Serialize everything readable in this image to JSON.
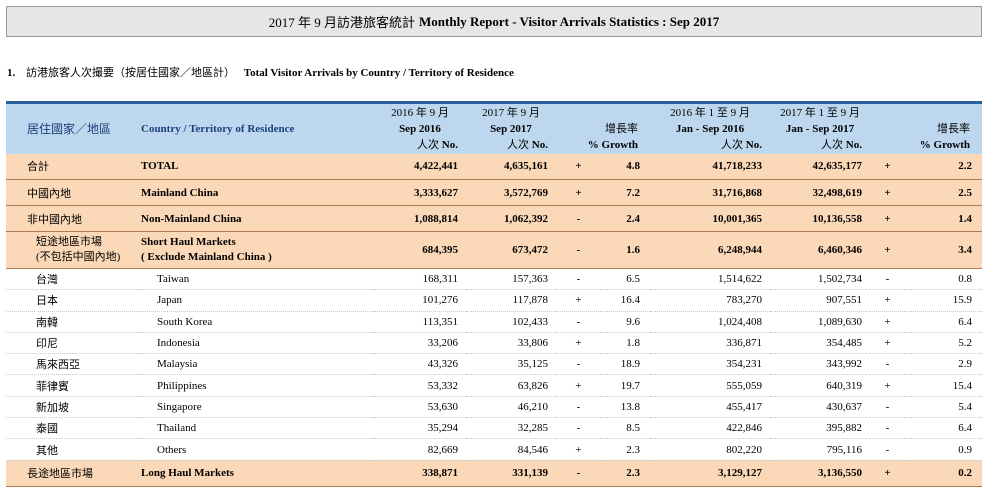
{
  "title": {
    "zh": "2017 年 9 月訪港旅客統計",
    "en": "Monthly Report - Visitor Arrivals Statistics : Sep 2017"
  },
  "section": {
    "number": "1.",
    "zh": "訪港旅客人次撮要（按居住國家／地區計）",
    "en": "Total Visitor Arrivals by Country / Territory of Residence"
  },
  "header": {
    "col_zh": "居住國家／地區",
    "col_en": "Country / Territory of Residence",
    "sep2016_zh": "2016 年 9 月",
    "sep2016_en": "Sep 2016",
    "sep2017_zh": "2017 年 9 月",
    "sep2017_en": "Sep 2017",
    "unit_zh": "人次",
    "unit_en": "No.",
    "growth_zh": "增長率",
    "growth_en": "% Growth",
    "ytd2016_zh": "2016 年 1 至 9 月",
    "ytd2016_en": "Jan - Sep 2016",
    "ytd2017_zh": "2017 年 1 至 9 月",
    "ytd2017_en": "Jan - Sep 2017"
  },
  "rows": [
    {
      "type": "summary",
      "zh": "合計",
      "en": "TOTAL",
      "sep16": "4,422,441",
      "sep17": "4,635,161",
      "s1": "+",
      "g1": "4.8",
      "ytd16": "41,718,233",
      "ytd17": "42,635,177",
      "s2": "+",
      "g2": "2.2"
    },
    {
      "type": "summary",
      "zh": "中國內地",
      "en": "Mainland China",
      "sep16": "3,333,627",
      "sep17": "3,572,769",
      "s1": "+",
      "g1": "7.2",
      "ytd16": "31,716,868",
      "ytd17": "32,498,619",
      "s2": "+",
      "g2": "2.5"
    },
    {
      "type": "summary",
      "zh": "非中國內地",
      "en": "Non-Mainland China",
      "sep16": "1,088,814",
      "sep17": "1,062,392",
      "s1": "-",
      "g1": "2.4",
      "ytd16": "10,001,365",
      "ytd17": "10,136,558",
      "s2": "+",
      "g2": "1.4"
    },
    {
      "type": "summary-tall",
      "zh": "短途地區市場",
      "zh2": "(不包括中國內地)",
      "en": "Short Haul Markets",
      "en2": "( Exclude Mainland China )",
      "sep16": "684,395",
      "sep17": "673,472",
      "s1": "-",
      "g1": "1.6",
      "ytd16": "6,248,944",
      "ytd17": "6,460,346",
      "s2": "+",
      "g2": "3.4"
    },
    {
      "type": "detail",
      "zh": "台灣",
      "en": "Taiwan",
      "sep16": "168,311",
      "sep17": "157,363",
      "s1": "-",
      "g1": "6.5",
      "ytd16": "1,514,622",
      "ytd17": "1,502,734",
      "s2": "-",
      "g2": "0.8"
    },
    {
      "type": "detail",
      "zh": "日本",
      "en": "Japan",
      "sep16": "101,276",
      "sep17": "117,878",
      "s1": "+",
      "g1": "16.4",
      "ytd16": "783,270",
      "ytd17": "907,551",
      "s2": "+",
      "g2": "15.9"
    },
    {
      "type": "detail",
      "zh": "南韓",
      "en": "South Korea",
      "sep16": "113,351",
      "sep17": "102,433",
      "s1": "-",
      "g1": "9.6",
      "ytd16": "1,024,408",
      "ytd17": "1,089,630",
      "s2": "+",
      "g2": "6.4"
    },
    {
      "type": "detail",
      "zh": "印尼",
      "en": "Indonesia",
      "sep16": "33,206",
      "sep17": "33,806",
      "s1": "+",
      "g1": "1.8",
      "ytd16": "336,871",
      "ytd17": "354,485",
      "s2": "+",
      "g2": "5.2"
    },
    {
      "type": "detail",
      "zh": "馬來西亞",
      "en": "Malaysia",
      "sep16": "43,326",
      "sep17": "35,125",
      "s1": "-",
      "g1": "18.9",
      "ytd16": "354,231",
      "ytd17": "343,992",
      "s2": "-",
      "g2": "2.9"
    },
    {
      "type": "detail",
      "zh": "菲律賓",
      "en": "Philippines",
      "sep16": "53,332",
      "sep17": "63,826",
      "s1": "+",
      "g1": "19.7",
      "ytd16": "555,059",
      "ytd17": "640,319",
      "s2": "+",
      "g2": "15.4"
    },
    {
      "type": "detail",
      "zh": "新加坡",
      "en": "Singapore",
      "sep16": "53,630",
      "sep17": "46,210",
      "s1": "-",
      "g1": "13.8",
      "ytd16": "455,417",
      "ytd17": "430,637",
      "s2": "-",
      "g2": "5.4"
    },
    {
      "type": "detail",
      "zh": "泰國",
      "en": "Thailand",
      "sep16": "35,294",
      "sep17": "32,285",
      "s1": "-",
      "g1": "8.5",
      "ytd16": "422,846",
      "ytd17": "395,882",
      "s2": "-",
      "g2": "6.4"
    },
    {
      "type": "detail",
      "zh": "其他",
      "en": "Others",
      "sep16": "82,669",
      "sep17": "84,546",
      "s1": "+",
      "g1": "2.3",
      "ytd16": "802,220",
      "ytd17": "795,116",
      "s2": "-",
      "g2": "0.9"
    },
    {
      "type": "summary",
      "zh": "長途地區市場",
      "en": "Long Haul Markets",
      "sep16": "338,871",
      "sep17": "331,139",
      "s1": "-",
      "g1": "2.3",
      "ytd16": "3,129,127",
      "ytd17": "3,136,550",
      "s2": "+",
      "g2": "0.2"
    }
  ]
}
